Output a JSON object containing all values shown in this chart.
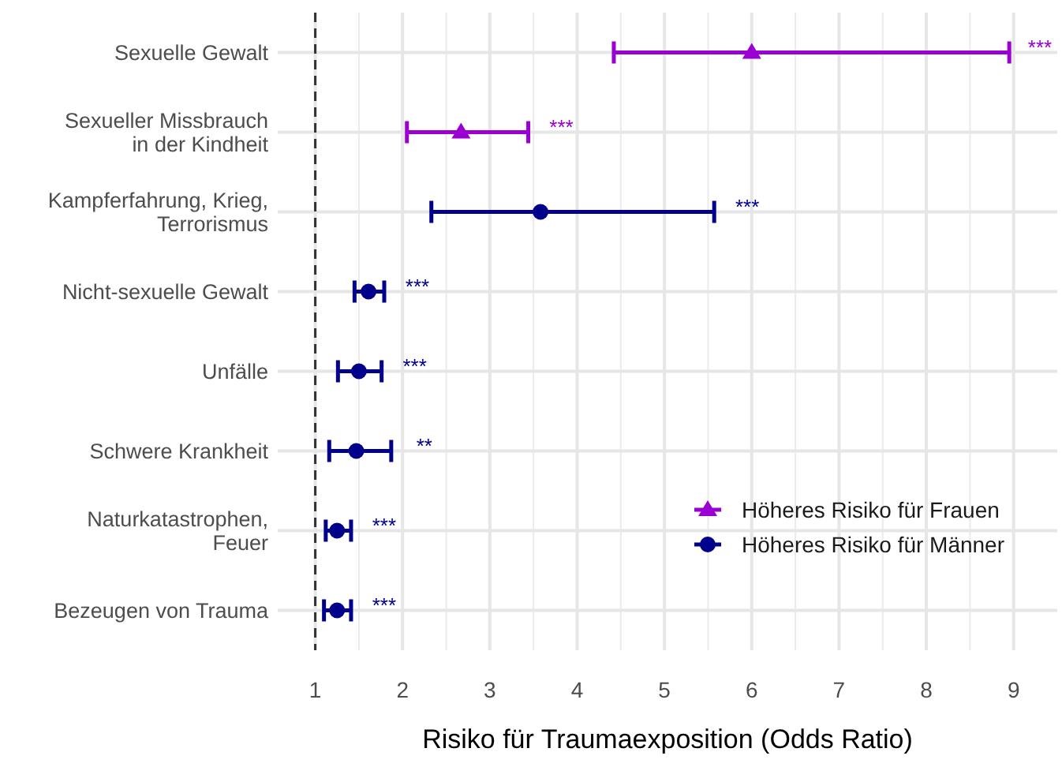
{
  "chart_data": {
    "type": "scatter",
    "orientation": "horizontal",
    "xlabel": "Risiko für Traumaexposition (Odds Ratio)",
    "categories": [
      "Sexuelle Gewalt",
      "Sexueller Missbrauch\nin der Kindheit",
      "Kampferfahrung, Krieg,\nTerrorismus",
      "Nicht-sexuelle Gewalt",
      "Unfälle",
      "Schwere Krankheit",
      "Naturkatastrophen,\nFeuer",
      "Bezeugen von Trauma"
    ],
    "series": [
      {
        "name": "Höheres Risiko für Frauen",
        "color": "#9b00d3",
        "marker": "triangle",
        "values": [
          6.0,
          2.67,
          null,
          null,
          null,
          null,
          null,
          null
        ],
        "errors": [
          [
            4.42,
            8.95
          ],
          [
            2.05,
            3.44
          ],
          null,
          null,
          null,
          null,
          null,
          null
        ]
      },
      {
        "name": "Höheres Risiko für Männer",
        "color": "#00008b",
        "marker": "circle",
        "values": [
          null,
          null,
          3.58,
          1.61,
          1.5,
          1.47,
          1.25,
          1.25
        ],
        "errors": [
          null,
          null,
          [
            2.33,
            5.57
          ],
          [
            1.45,
            1.79
          ],
          [
            1.26,
            1.76
          ],
          [
            1.16,
            1.87
          ],
          [
            1.12,
            1.41
          ],
          [
            1.1,
            1.41
          ]
        ]
      }
    ],
    "xlim": [
      0.57,
      9.5
    ],
    "xticks": [
      1,
      2,
      3,
      4,
      5,
      6,
      7,
      8,
      9
    ],
    "grid": true,
    "legend": "bottom right",
    "ref_lines": [
      {
        "axis": "x",
        "value": 1,
        "line_style": "dashed",
        "color": "#333333"
      }
    ],
    "annotations": [
      "***",
      "***",
      "***",
      "***",
      "***",
      "**",
      "***",
      "***"
    ]
  }
}
